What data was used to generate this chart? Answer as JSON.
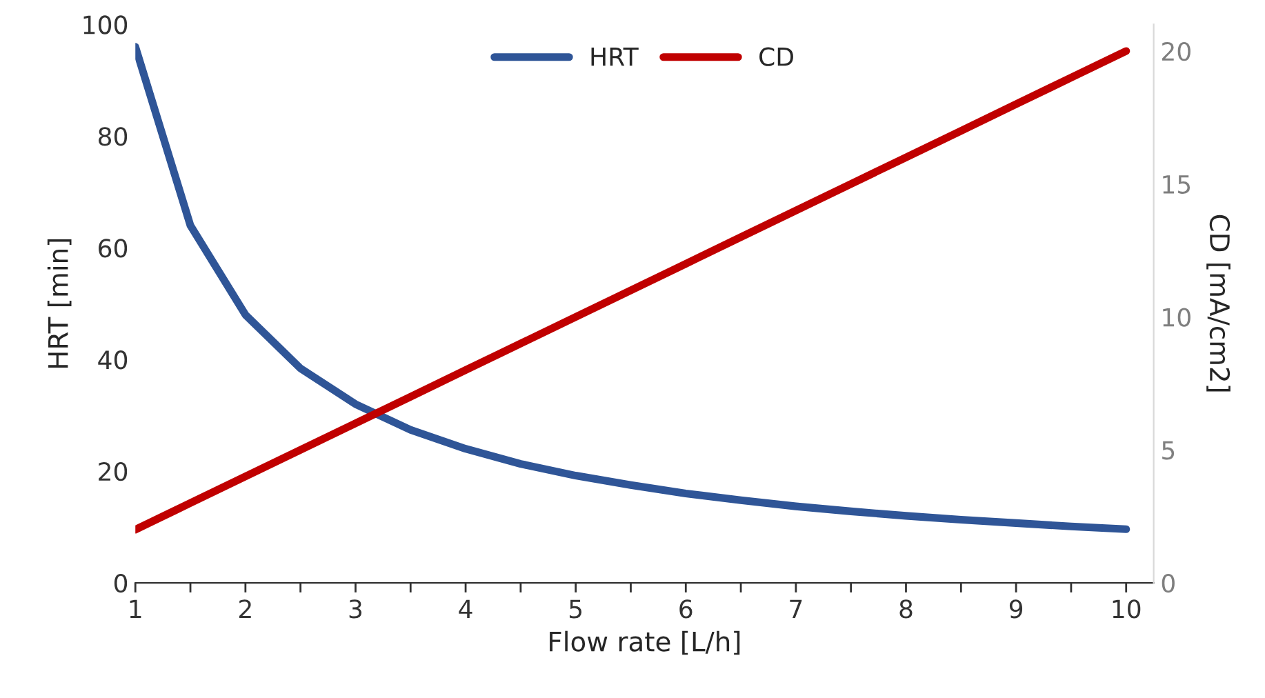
{
  "chart_data": {
    "type": "line",
    "xlabel": "Flow rate [L/h]",
    "ylabel": "HRT [min]",
    "y2label": "CD [mA/cm2]",
    "x": [
      1,
      1.5,
      2,
      2.5,
      3,
      3.5,
      4,
      4.5,
      5,
      5.5,
      6,
      6.5,
      7,
      7.5,
      8,
      8.5,
      9,
      9.5,
      10
    ],
    "series": [
      {
        "name": "HRT",
        "color": "#2f5597",
        "values": [
          96,
          64,
          48,
          38.4,
          32,
          27.4,
          24,
          21.3,
          19.2,
          17.5,
          16,
          14.8,
          13.7,
          12.8,
          12,
          11.3,
          10.7,
          10.1,
          9.6
        ]
      },
      {
        "name": "CD",
        "color": "#c00000",
        "axis": "y2",
        "values": [
          2,
          3,
          4,
          5,
          6,
          7,
          8,
          9,
          10,
          11,
          12,
          13,
          14,
          15,
          16,
          17,
          18,
          19,
          20
        ]
      }
    ],
    "xlim": [
      1,
      10.25
    ],
    "xticks": [
      1,
      {
        "value": 1.5,
        "label": null
      },
      2,
      {
        "value": 2.5,
        "label": null
      },
      3,
      {
        "value": 3.5,
        "label": null
      },
      4,
      {
        "value": 4.5,
        "label": null
      },
      5,
      {
        "value": 5.5,
        "label": null
      },
      6,
      {
        "value": 6.5,
        "label": null
      },
      7,
      {
        "value": 7.5,
        "label": null
      },
      8,
      {
        "value": 8.5,
        "label": null
      },
      9,
      {
        "value": 9.5,
        "label": null
      },
      10
    ],
    "ylim": [
      0,
      100
    ],
    "yticks": [
      0,
      20,
      40,
      60,
      80,
      100
    ],
    "y2lim": [
      0,
      21
    ],
    "y2ticks": [
      0,
      5,
      10,
      15,
      20
    ],
    "grid": false,
    "legend": "top",
    "marker": "none",
    "line_style": "solid"
  }
}
